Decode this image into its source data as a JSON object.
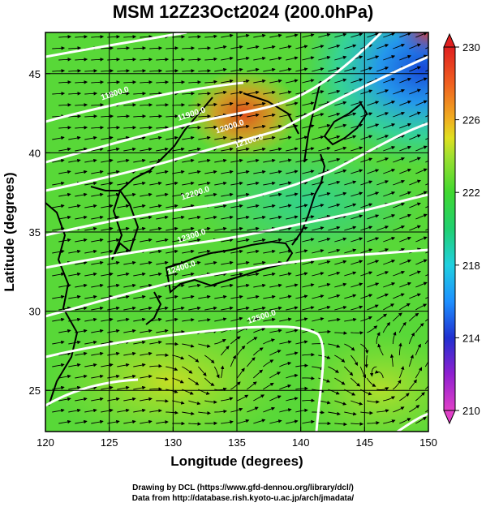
{
  "title": "MSM 12Z23Oct2024 (200.0hPa)",
  "credits": {
    "line1": "Drawing by DCL (https://www.gfd-dennou.org/library/dcl/)",
    "line2": "Data from http://database.rish.kyoto-u.ac.jp/arch/jmadata/"
  },
  "map": {
    "xlabel": "Longitude (degrees)",
    "ylabel": "Latitude  (degrees)",
    "lon_range": [
      120,
      150
    ],
    "lat_range": [
      22.4,
      47.6
    ],
    "x_ticks": [
      120,
      125,
      130,
      135,
      140,
      145,
      150
    ],
    "y_ticks": [
      25,
      30,
      35,
      40,
      45
    ],
    "field": "temperature (K) with streamlines and geopotential height contours",
    "contour_labels": [
      {
        "text": "11800.0",
        "lon": 125.5,
        "lat": 43.6
      },
      {
        "text": "11900.0",
        "lon": 131.5,
        "lat": 42.3
      },
      {
        "text": "12000.0",
        "lon": 134.5,
        "lat": 41.5
      },
      {
        "text": "12100.0",
        "lon": 136.0,
        "lat": 40.6
      },
      {
        "text": "12200.0",
        "lon": 131.8,
        "lat": 37.3
      },
      {
        "text": "12300.0",
        "lon": 131.5,
        "lat": 34.6
      },
      {
        "text": "12400.0",
        "lon": 130.7,
        "lat": 32.6
      },
      {
        "text": "12500.0",
        "lon": 137.0,
        "lat": 29.5
      }
    ]
  },
  "colorbar": {
    "min": 210,
    "max": 230,
    "labels": [
      "230",
      "226",
      "222",
      "218",
      "214",
      "210"
    ],
    "stops": [
      {
        "value": 210,
        "color": "#e040c8"
      },
      {
        "value": 212,
        "color": "#9020d0"
      },
      {
        "value": 214,
        "color": "#2030d0"
      },
      {
        "value": 216,
        "color": "#1e90ff"
      },
      {
        "value": 218,
        "color": "#20d0e0"
      },
      {
        "value": 220,
        "color": "#20d070"
      },
      {
        "value": 222,
        "color": "#40d830"
      },
      {
        "value": 224,
        "color": "#a0e030"
      },
      {
        "value": 225,
        "color": "#e0e020"
      },
      {
        "value": 226,
        "color": "#f0b020"
      },
      {
        "value": 228,
        "color": "#f06020"
      },
      {
        "value": 230,
        "color": "#e02020"
      }
    ]
  }
}
